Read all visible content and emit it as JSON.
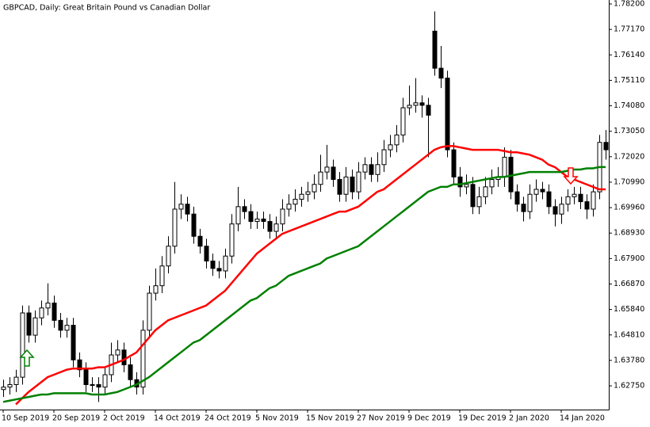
{
  "chart_data": {
    "type": "candlestick",
    "title": "GBPCAD, Daily:  Great Britain Pound vs Canadian Dollar",
    "categories": [
      "10 Sep 2019",
      null,
      null,
      null,
      null,
      null,
      null,
      null,
      "20 Sep 2019",
      null,
      null,
      null,
      null,
      null,
      null,
      null,
      "2 Oct 2019",
      null,
      null,
      null,
      null,
      null,
      null,
      null,
      "14 Oct 2019",
      null,
      null,
      null,
      null,
      null,
      null,
      null,
      "24 Oct 2019",
      null,
      null,
      null,
      null,
      null,
      null,
      null,
      "5 Nov 2019",
      null,
      null,
      null,
      null,
      null,
      null,
      null,
      "15 Nov 2019",
      null,
      null,
      null,
      null,
      null,
      null,
      null,
      "27 Nov 2019",
      null,
      null,
      null,
      null,
      null,
      null,
      null,
      "9 Dec 2019",
      null,
      null,
      null,
      null,
      null,
      null,
      null,
      "19 Dec 2019",
      null,
      null,
      null,
      null,
      null,
      null,
      null,
      "2 Jan 2020",
      null,
      null,
      null,
      null,
      null,
      null,
      null,
      "14 Jan 2020",
      null,
      null,
      null,
      null,
      null,
      null,
      null
    ],
    "open": [
      1.626,
      1.627,
      1.628,
      1.631,
      1.657,
      1.648,
      1.655,
      1.659,
      1.661,
      1.654,
      1.65,
      1.652,
      1.638,
      1.634,
      1.628,
      1.628,
      1.627,
      1.632,
      1.64,
      1.642,
      1.636,
      1.63,
      1.627,
      1.65,
      1.665,
      1.668,
      1.676,
      1.684,
      1.699,
      1.701,
      1.697,
      1.688,
      1.684,
      1.678,
      1.675,
      1.674,
      1.68,
      1.693,
      1.7,
      1.698,
      1.694,
      1.695,
      1.694,
      1.69,
      1.693,
      1.699,
      1.701,
      1.703,
      1.705,
      1.706,
      1.709,
      1.714,
      1.716,
      1.711,
      1.705,
      1.712,
      1.706,
      1.714,
      1.717,
      1.713,
      1.717,
      1.723,
      1.725,
      1.729,
      1.74,
      1.741,
      1.742,
      1.741,
      1.771,
      1.756,
      1.752,
      1.723,
      1.712,
      1.708,
      1.709,
      1.7,
      1.704,
      1.708,
      1.711,
      1.712,
      1.72,
      1.706,
      1.701,
      1.698,
      1.705,
      1.707,
      1.706,
      1.7,
      1.697,
      1.701,
      1.704,
      1.705,
      1.702,
      1.699,
      1.706,
      1.726
    ],
    "high": [
      1.63,
      1.631,
      1.634,
      1.66,
      1.66,
      1.658,
      1.662,
      1.669,
      1.664,
      1.657,
      1.655,
      1.655,
      1.641,
      1.637,
      1.631,
      1.631,
      1.635,
      1.645,
      1.646,
      1.645,
      1.639,
      1.633,
      1.654,
      1.668,
      1.675,
      1.68,
      1.688,
      1.71,
      1.705,
      1.704,
      1.7,
      1.691,
      1.687,
      1.681,
      1.678,
      1.683,
      1.697,
      1.708,
      1.703,
      1.701,
      1.698,
      1.698,
      1.697,
      1.696,
      1.703,
      1.705,
      1.707,
      1.708,
      1.71,
      1.713,
      1.721,
      1.725,
      1.719,
      1.714,
      1.716,
      1.715,
      1.718,
      1.72,
      1.72,
      1.722,
      1.727,
      1.729,
      1.733,
      1.744,
      1.749,
      1.752,
      1.745,
      1.744,
      1.779,
      1.765,
      1.755,
      1.726,
      1.716,
      1.713,
      1.712,
      1.708,
      1.712,
      1.715,
      1.716,
      1.724,
      1.723,
      1.709,
      1.704,
      1.709,
      1.711,
      1.71,
      1.709,
      1.703,
      1.704,
      1.707,
      1.708,
      1.708,
      1.705,
      1.709,
      1.729,
      1.731
    ],
    "low": [
      1.623,
      1.624,
      1.625,
      1.628,
      1.645,
      1.645,
      1.652,
      1.656,
      1.651,
      1.647,
      1.647,
      1.635,
      1.631,
      1.625,
      1.625,
      1.621,
      1.624,
      1.629,
      1.637,
      1.633,
      1.627,
      1.624,
      1.624,
      1.647,
      1.662,
      1.665,
      1.673,
      1.681,
      1.695,
      1.694,
      1.685,
      1.681,
      1.675,
      1.672,
      1.671,
      1.671,
      1.677,
      1.69,
      1.695,
      1.691,
      1.691,
      1.691,
      1.687,
      1.687,
      1.69,
      1.696,
      1.698,
      1.7,
      1.702,
      1.703,
      1.706,
      1.711,
      1.708,
      1.702,
      1.702,
      1.703,
      1.703,
      1.711,
      1.71,
      1.71,
      1.714,
      1.72,
      1.722,
      1.726,
      1.737,
      1.738,
      1.736,
      1.72,
      1.753,
      1.748,
      1.72,
      1.709,
      1.704,
      1.705,
      1.697,
      1.697,
      1.701,
      1.705,
      1.708,
      1.708,
      1.703,
      1.698,
      1.694,
      1.695,
      1.702,
      1.703,
      1.697,
      1.692,
      1.693,
      1.698,
      1.701,
      1.699,
      1.695,
      1.696,
      1.703,
      1.719
    ],
    "close": [
      1.627,
      1.628,
      1.631,
      1.657,
      1.648,
      1.655,
      1.659,
      1.661,
      1.654,
      1.65,
      1.652,
      1.638,
      1.634,
      1.628,
      1.628,
      1.627,
      1.632,
      1.64,
      1.642,
      1.636,
      1.63,
      1.627,
      1.65,
      1.665,
      1.668,
      1.676,
      1.684,
      1.699,
      1.701,
      1.697,
      1.688,
      1.684,
      1.678,
      1.675,
      1.674,
      1.68,
      1.693,
      1.7,
      1.698,
      1.694,
      1.695,
      1.694,
      1.69,
      1.693,
      1.699,
      1.701,
      1.703,
      1.705,
      1.706,
      1.709,
      1.714,
      1.716,
      1.711,
      1.705,
      1.712,
      1.706,
      1.714,
      1.717,
      1.713,
      1.717,
      1.723,
      1.725,
      1.729,
      1.74,
      1.741,
      1.742,
      1.741,
      1.737,
      1.756,
      1.752,
      1.723,
      1.712,
      1.708,
      1.709,
      1.7,
      1.704,
      1.708,
      1.711,
      1.712,
      1.72,
      1.706,
      1.701,
      1.698,
      1.705,
      1.707,
      1.706,
      1.7,
      1.697,
      1.701,
      1.704,
      1.705,
      1.702,
      1.699,
      1.706,
      1.726,
      1.723
    ],
    "up_color": "#ffffff",
    "down_color": "#000000",
    "series": [
      {
        "color": "#ff0000",
        "values": [
          null,
          null,
          1.62,
          1.6225,
          1.625,
          1.627,
          1.629,
          1.631,
          1.632,
          1.633,
          1.634,
          1.6345,
          1.6345,
          1.6345,
          1.6345,
          1.635,
          1.635,
          1.636,
          1.637,
          1.638,
          1.6395,
          1.641,
          1.644,
          1.647,
          1.65,
          1.652,
          1.654,
          1.655,
          1.656,
          1.657,
          1.658,
          1.659,
          1.66,
          1.662,
          1.664,
          1.666,
          1.669,
          1.672,
          1.675,
          1.678,
          1.681,
          1.683,
          1.685,
          1.687,
          1.689,
          1.69,
          1.691,
          1.692,
          1.693,
          1.694,
          1.695,
          1.696,
          1.697,
          1.698,
          1.698,
          1.699,
          1.7,
          1.702,
          1.704,
          1.706,
          1.707,
          1.709,
          1.711,
          1.713,
          1.715,
          1.717,
          1.719,
          1.721,
          1.723,
          1.724,
          1.7245,
          1.7245,
          1.724,
          1.7235,
          1.723,
          1.723,
          1.723,
          1.723,
          1.723,
          1.7225,
          1.722,
          1.722,
          1.7215,
          1.721,
          1.72,
          1.719,
          1.717,
          1.716,
          1.714,
          1.712,
          1.711,
          1.71,
          1.709,
          1.708,
          1.707,
          1.707
        ]
      },
      {
        "color": "#008000",
        "values": [
          1.621,
          1.6215,
          1.622,
          1.6225,
          1.623,
          1.6235,
          1.624,
          1.624,
          1.6245,
          1.6245,
          1.6245,
          1.6245,
          1.6245,
          1.6245,
          1.624,
          1.624,
          1.624,
          1.6245,
          1.625,
          1.626,
          1.627,
          1.628,
          1.6295,
          1.631,
          1.633,
          1.635,
          1.637,
          1.639,
          1.641,
          1.643,
          1.645,
          1.646,
          1.648,
          1.65,
          1.652,
          1.654,
          1.656,
          1.658,
          1.66,
          1.662,
          1.663,
          1.665,
          1.667,
          1.668,
          1.67,
          1.672,
          1.673,
          1.674,
          1.675,
          1.676,
          1.677,
          1.679,
          1.68,
          1.681,
          1.682,
          1.683,
          1.684,
          1.686,
          1.688,
          1.69,
          1.692,
          1.694,
          1.696,
          1.698,
          1.7,
          1.702,
          1.704,
          1.706,
          1.707,
          1.708,
          1.708,
          1.709,
          1.709,
          1.7095,
          1.71,
          1.7105,
          1.711,
          1.7115,
          1.712,
          1.712,
          1.7125,
          1.713,
          1.7135,
          1.714,
          1.714,
          1.714,
          1.714,
          1.714,
          1.714,
          1.7145,
          1.715,
          1.715,
          1.7155,
          1.7155,
          1.716,
          1.716
        ]
      }
    ],
    "ylim": [
      1.6179,
      1.7836
    ],
    "yticks": [
      {
        "value": 1.782,
        "label": "1.78200"
      },
      {
        "value": 1.7717,
        "label": "1.77170"
      },
      {
        "value": 1.7614,
        "label": "1.76140"
      },
      {
        "value": 1.7511,
        "label": "1.75110"
      },
      {
        "value": 1.7408,
        "label": "1.74080"
      },
      {
        "value": 1.7305,
        "label": "1.73050"
      },
      {
        "value": 1.7202,
        "label": "1.72020"
      },
      {
        "value": 1.7099,
        "label": "1.70990"
      },
      {
        "value": 1.6996,
        "label": "1.69960"
      },
      {
        "value": 1.6893,
        "label": "1.68930"
      },
      {
        "value": 1.679,
        "label": "1.67900"
      },
      {
        "value": 1.6687,
        "label": "1.66870"
      },
      {
        "value": 1.6584,
        "label": "1.65840"
      },
      {
        "value": 1.6481,
        "label": "1.64810"
      },
      {
        "value": 1.6378,
        "label": "1.63780"
      },
      {
        "value": 1.6275,
        "label": "1.62750"
      }
    ],
    "grid": false
  }
}
